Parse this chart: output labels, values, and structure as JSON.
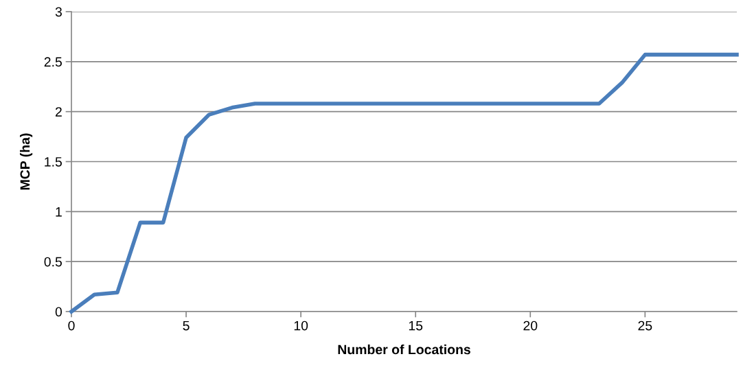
{
  "chart_data": {
    "type": "line",
    "xlabel": "Number of Locations",
    "ylabel": "MCP (ha)",
    "x": [
      0,
      1,
      2,
      3,
      4,
      5,
      6,
      7,
      8,
      9,
      10,
      11,
      12,
      13,
      14,
      15,
      16,
      17,
      18,
      19,
      20,
      21,
      22,
      23,
      24,
      25,
      26,
      27,
      28,
      29
    ],
    "series": [
      {
        "color": "#4a7ebb",
        "values": [
          0,
          0.17,
          0.19,
          0.89,
          0.89,
          1.74,
          1.97,
          2.04,
          2.08,
          2.08,
          2.08,
          2.08,
          2.08,
          2.08,
          2.08,
          2.08,
          2.08,
          2.08,
          2.08,
          2.08,
          2.08,
          2.08,
          2.08,
          2.08,
          2.29,
          2.57,
          2.57,
          2.57,
          2.57,
          2.57
        ]
      }
    ],
    "xlim": [
      0,
      29
    ],
    "xticks": [
      0,
      5,
      10,
      15,
      20,
      25
    ],
    "ylim": [
      0,
      3
    ],
    "yticks": [
      0,
      0.5,
      1,
      1.5,
      2,
      2.5,
      3
    ],
    "grid": "y",
    "marker": "none",
    "line_style": "solid"
  }
}
